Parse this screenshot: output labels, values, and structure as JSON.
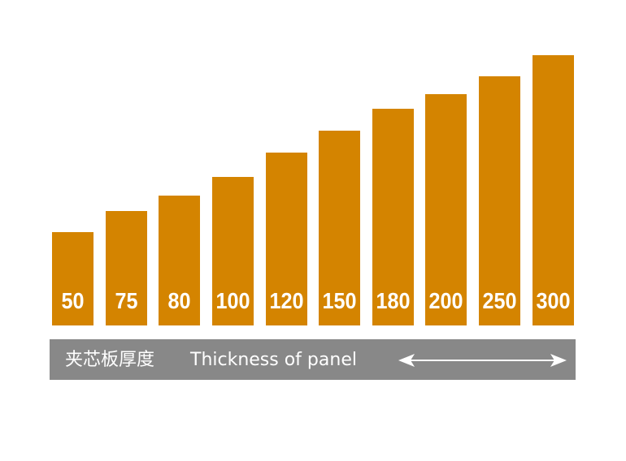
{
  "bars": {
    "labels": [
      "50",
      "75",
      "80",
      "100",
      "120",
      "150",
      "180",
      "200",
      "250",
      "300"
    ]
  },
  "caption": {
    "chinese": "夹芯板厚度",
    "english": "Thickness of panel"
  }
}
